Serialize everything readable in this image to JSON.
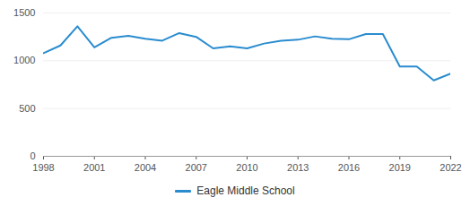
{
  "chart_data": {
    "type": "line",
    "x": [
      1998,
      1999,
      2000,
      2001,
      2002,
      2003,
      2004,
      2005,
      2006,
      2007,
      2008,
      2009,
      2010,
      2011,
      2012,
      2013,
      2014,
      2015,
      2016,
      2017,
      2018,
      2019,
      2020,
      2021,
      2022
    ],
    "series": [
      {
        "name": "Eagle Middle School",
        "color": "#2a8ccf",
        "values": [
          1080,
          1160,
          1360,
          1140,
          1240,
          1260,
          1230,
          1210,
          1290,
          1250,
          1130,
          1150,
          1130,
          1180,
          1210,
          1220,
          1255,
          1230,
          1225,
          1280,
          1280,
          940,
          940,
          795,
          865
        ]
      }
    ],
    "xlim": [
      1998,
      2022
    ],
    "xticks": [
      1998,
      2001,
      2004,
      2007,
      2010,
      2013,
      2016,
      2019,
      2022
    ],
    "ylim": [
      0,
      1500
    ],
    "yticks": [
      0,
      500,
      1000,
      1500
    ],
    "grid": true,
    "legend": "bottom"
  }
}
